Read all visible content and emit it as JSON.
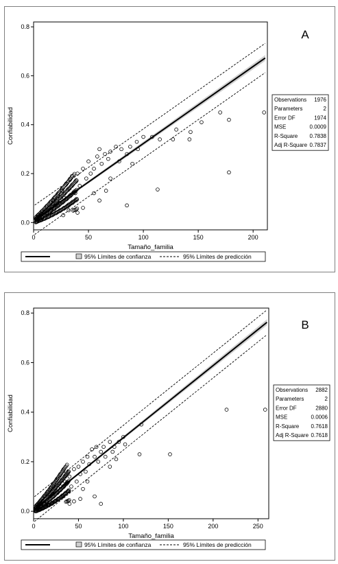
{
  "chart_data": [
    {
      "type": "scatter",
      "panel_label": "A",
      "xlabel": "Tamaño_familia",
      "ylabel": "Confiabilidad",
      "xlim": [
        0,
        213
      ],
      "ylim": [
        -0.03,
        0.82
      ],
      "xticks": [
        0,
        50,
        100,
        150,
        200
      ],
      "yticks": [
        0.0,
        0.2,
        0.4,
        0.6,
        0.8
      ],
      "xtick_labels": [
        "0",
        "50",
        "100",
        "150",
        "200"
      ],
      "ytick_labels": [
        "0.0",
        "0.2",
        "0.4",
        "0.6",
        "0.8"
      ],
      "fit": {
        "slope": 0.00315,
        "intercept": 0.008
      },
      "conf_band_halfwidth": [
        0.004,
        0.012
      ],
      "pred_band_halfwidth": 0.06,
      "points": [
        [
          210,
          0.45
        ],
        [
          178,
          0.42
        ],
        [
          178,
          0.205
        ],
        [
          170,
          0.45
        ],
        [
          153,
          0.41
        ],
        [
          143,
          0.37
        ],
        [
          142,
          0.34
        ],
        [
          130,
          0.38
        ],
        [
          127,
          0.34
        ],
        [
          115,
          0.34
        ],
        [
          113,
          0.135
        ],
        [
          108,
          0.35
        ],
        [
          100,
          0.35
        ],
        [
          94,
          0.33
        ],
        [
          85,
          0.07
        ],
        [
          90,
          0.24
        ],
        [
          88,
          0.31
        ],
        [
          80,
          0.3
        ],
        [
          78,
          0.25
        ],
        [
          75,
          0.31
        ],
        [
          70,
          0.29
        ],
        [
          68,
          0.26
        ],
        [
          65,
          0.28
        ],
        [
          62,
          0.24
        ],
        [
          60,
          0.3
        ],
        [
          58,
          0.27
        ],
        [
          55,
          0.22
        ],
        [
          52,
          0.2
        ],
        [
          50,
          0.25
        ],
        [
          48,
          0.18
        ],
        [
          45,
          0.22
        ],
        [
          42,
          0.15
        ],
        [
          40,
          0.2
        ],
        [
          38,
          0.12
        ],
        [
          35,
          0.19
        ],
        [
          33,
          0.14
        ],
        [
          30,
          0.16
        ],
        [
          28,
          0.1
        ],
        [
          26,
          0.13
        ],
        [
          24,
          0.08
        ],
        [
          22,
          0.11
        ],
        [
          20,
          0.07
        ],
        [
          18,
          0.09
        ],
        [
          16,
          0.05
        ],
        [
          14,
          0.06
        ],
        [
          12,
          0.04
        ],
        [
          10,
          0.03
        ],
        [
          8,
          0.02
        ],
        [
          6,
          0.015
        ],
        [
          4,
          0.01
        ],
        [
          66,
          0.13
        ],
        [
          60,
          0.09
        ],
        [
          55,
          0.12
        ],
        [
          45,
          0.06
        ],
        [
          40,
          0.04
        ],
        [
          32,
          0.05
        ],
        [
          27,
          0.03
        ],
        [
          70,
          0.18
        ],
        [
          85,
          0.28
        ],
        [
          95,
          0.3
        ]
      ],
      "stats": [
        [
          "Observations",
          "1976"
        ],
        [
          "Parameters",
          "2"
        ],
        [
          "Error DF",
          "1974"
        ],
        [
          "MSE",
          "0.0009"
        ],
        [
          "R-Square",
          "0.7838"
        ],
        [
          "Adj R-Square",
          "0.7837"
        ]
      ],
      "legend": {
        "conf": "95% Límites de confianza",
        "pred": "95% Límites de predicción"
      }
    },
    {
      "type": "scatter",
      "panel_label": "B",
      "xlabel": "Tamaño_familia",
      "ylabel": "Confiabilidad",
      "xlim": [
        0,
        262
      ],
      "ylim": [
        -0.03,
        0.82
      ],
      "xticks": [
        0,
        50,
        100,
        150,
        200,
        250
      ],
      "yticks": [
        0.0,
        0.2,
        0.4,
        0.6,
        0.8
      ],
      "xtick_labels": [
        "0",
        "50",
        "100",
        "150",
        "200",
        "250"
      ],
      "ytick_labels": [
        "0.0",
        "0.2",
        "0.4",
        "0.6",
        "0.8"
      ],
      "fit": {
        "slope": 0.00291,
        "intercept": 0.006
      },
      "conf_band_halfwidth": [
        0.003,
        0.012
      ],
      "pred_band_halfwidth": 0.05,
      "points": [
        [
          258,
          0.41
        ],
        [
          215,
          0.41
        ],
        [
          152,
          0.23
        ],
        [
          120,
          0.35
        ],
        [
          118,
          0.23
        ],
        [
          102,
          0.27
        ],
        [
          100,
          0.3
        ],
        [
          95,
          0.28
        ],
        [
          90,
          0.26
        ],
        [
          88,
          0.24
        ],
        [
          85,
          0.28
        ],
        [
          80,
          0.22
        ],
        [
          78,
          0.26
        ],
        [
          75,
          0.24
        ],
        [
          72,
          0.2
        ],
        [
          70,
          0.26
        ],
        [
          68,
          0.22
        ],
        [
          65,
          0.25
        ],
        [
          62,
          0.19
        ],
        [
          60,
          0.22
        ],
        [
          58,
          0.16
        ],
        [
          55,
          0.2
        ],
        [
          52,
          0.15
        ],
        [
          50,
          0.18
        ],
        [
          48,
          0.12
        ],
        [
          45,
          0.17
        ],
        [
          42,
          0.1
        ],
        [
          40,
          0.14
        ],
        [
          38,
          0.08
        ],
        [
          35,
          0.12
        ],
        [
          33,
          0.06
        ],
        [
          30,
          0.1
        ],
        [
          28,
          0.05
        ],
        [
          26,
          0.08
        ],
        [
          24,
          0.04
        ],
        [
          22,
          0.07
        ],
        [
          20,
          0.03
        ],
        [
          18,
          0.06
        ],
        [
          16,
          0.025
        ],
        [
          14,
          0.04
        ],
        [
          12,
          0.02
        ],
        [
          10,
          0.015
        ],
        [
          8,
          0.01
        ],
        [
          6,
          0.008
        ],
        [
          4,
          0.005
        ],
        [
          52,
          0.05
        ],
        [
          45,
          0.04
        ],
        [
          40,
          0.03
        ],
        [
          55,
          0.09
        ],
        [
          68,
          0.06
        ],
        [
          75,
          0.03
        ],
        [
          60,
          0.12
        ],
        [
          85,
          0.18
        ],
        [
          92,
          0.21
        ]
      ],
      "stats": [
        [
          "Observations",
          "2882"
        ],
        [
          "Parameters",
          "2"
        ],
        [
          "Error DF",
          "2880"
        ],
        [
          "MSE",
          "0.0006"
        ],
        [
          "R-Square",
          "0.7618"
        ],
        [
          "Adj R-Square",
          "0.7618"
        ]
      ],
      "legend": {
        "conf": "95% Límites de confianza",
        "pred": "95% Límites de predicción"
      }
    }
  ]
}
